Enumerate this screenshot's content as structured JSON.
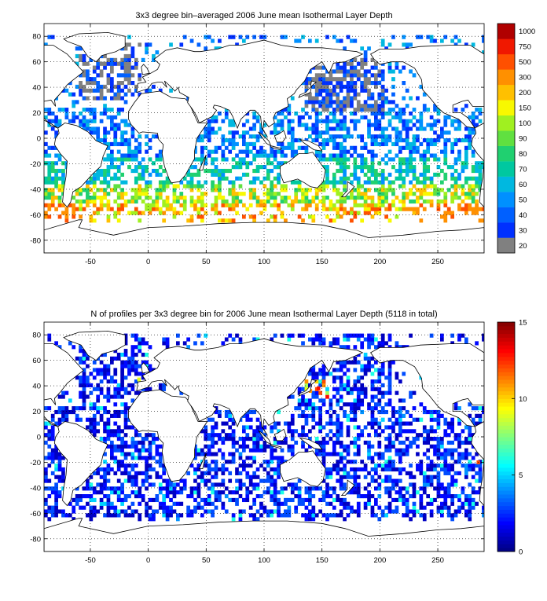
{
  "chart_data": [
    {
      "type": "heatmap",
      "title": "3x3 degree bin–averaged 2006 June mean Isothermal Layer Depth",
      "xlim": [
        -90,
        290
      ],
      "ylim": [
        -90,
        90
      ],
      "x_ticks": [
        "-50",
        "0",
        "50",
        "100",
        "150",
        "200",
        "250"
      ],
      "y_ticks": [
        "80",
        "60",
        "40",
        "20",
        "0",
        "-20",
        "-40",
        "-60",
        "-80"
      ],
      "grid": true,
      "bin_size_deg": 3,
      "colorbar": {
        "type": "categorical",
        "labels": [
          "20",
          "30",
          "40",
          "50",
          "60",
          "70",
          "80",
          "90",
          "100",
          "150",
          "200",
          "300",
          "500",
          "750",
          "1000"
        ],
        "colors": [
          "#808080",
          "#0030ff",
          "#0060ff",
          "#0090ff",
          "#00b8e0",
          "#00c8a0",
          "#20d070",
          "#60e040",
          "#a0f020",
          "#f8f800",
          "#ffc000",
          "#ff9000",
          "#ff5000",
          "#f01800",
          "#b00000"
        ]
      },
      "regions": [
        {
          "lon": [
            -55,
            -5
          ],
          "lat": [
            30,
            75
          ],
          "level": "20-30"
        },
        {
          "lon": [
            135,
            200
          ],
          "lat": [
            25,
            60
          ],
          "level": "20-40"
        },
        {
          "lon": [
            -90,
            290
          ],
          "lat": [
            -15,
            25
          ],
          "level": "30-60"
        },
        {
          "lon": [
            -90,
            290
          ],
          "lat": [
            -35,
            -15
          ],
          "level": "60-90"
        },
        {
          "lon": [
            -90,
            290
          ],
          "lat": [
            -55,
            -40
          ],
          "level": "100-200"
        },
        {
          "lon": [
            -90,
            -60
          ],
          "lat": [
            -60,
            -55
          ],
          "level": "300-500"
        },
        {
          "lon": [
            100,
            140
          ],
          "lat": [
            -58,
            -48
          ],
          "level": "200-300"
        },
        {
          "lon": [
            230,
            290
          ],
          "lat": [
            -62,
            -52
          ],
          "level": "300-500"
        }
      ]
    },
    {
      "type": "heatmap",
      "title": "N of profiles per 3x3 degree bin for 2006 June mean Isothermal Layer Depth  (5118 in total)",
      "xlim": [
        -90,
        290
      ],
      "ylim": [
        -90,
        90
      ],
      "x_ticks": [
        "-50",
        "0",
        "50",
        "100",
        "150",
        "200",
        "250"
      ],
      "y_ticks": [
        "80",
        "60",
        "40",
        "20",
        "0",
        "-20",
        "-40",
        "-60",
        "-80"
      ],
      "grid": true,
      "bin_size_deg": 3,
      "total_profiles": 5118,
      "colorbar": {
        "type": "continuous",
        "range": [
          0,
          15
        ],
        "ticks": [
          "0",
          "5",
          "10",
          "15"
        ],
        "colormap": "jet"
      },
      "typical_count_range": [
        1,
        3
      ],
      "hotspots": [
        {
          "lon": 147,
          "lat": 38,
          "value": 13
        },
        {
          "lon": 140,
          "lat": 36,
          "value": 11
        },
        {
          "lon": -8,
          "lat": 45,
          "value": 9
        },
        {
          "lon": 285,
          "lat": -20,
          "value": 12
        }
      ]
    }
  ],
  "colors": {
    "land": "#ffffff",
    "coast": "#000000",
    "grid": "#000000",
    "no_data": "#ffffff"
  }
}
